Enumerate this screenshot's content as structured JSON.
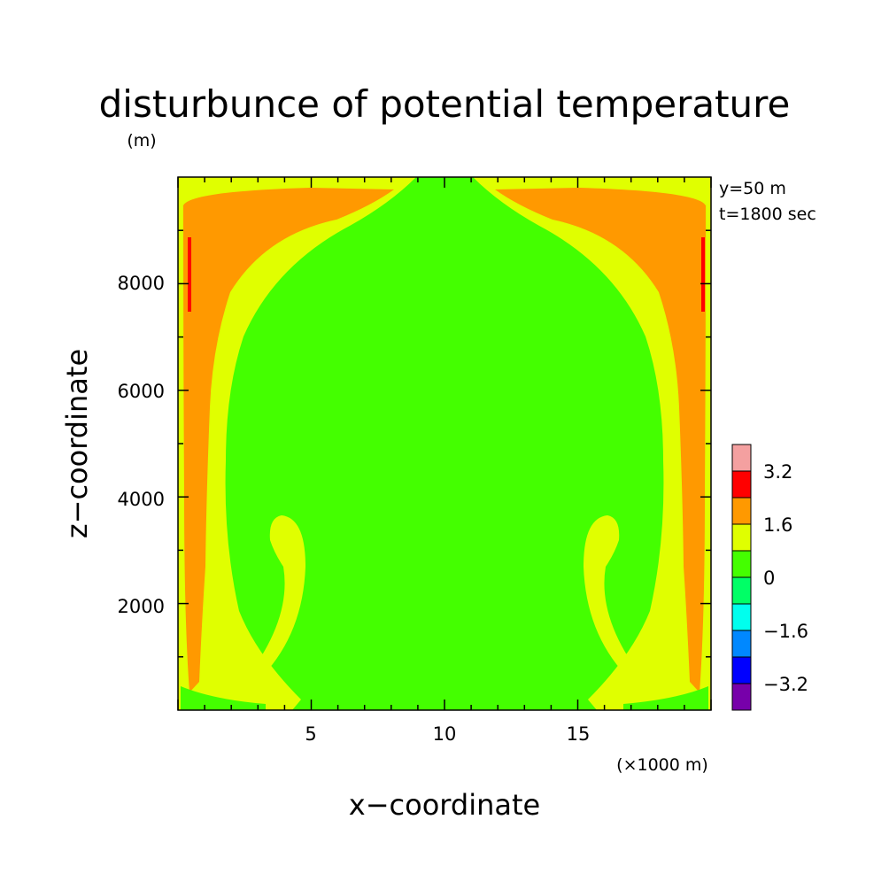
{
  "chart_data": {
    "type": "heatmap",
    "title": "disturbunce of potential temperature",
    "z_unit_label": "(m)",
    "xlabel": "x−coordinate",
    "ylabel": "z−coordinate",
    "x_unit_label": "(×1000 m)",
    "info": [
      "y=50 m",
      "t=1800 sec"
    ],
    "xlim": [
      0,
      20
    ],
    "ylim": [
      0,
      10000
    ],
    "x_ticks": [
      5,
      10,
      15
    ],
    "y_ticks": [
      2000,
      4000,
      6000,
      8000
    ],
    "colorbar": {
      "levels": [
        {
          "color": "#f4a0a0"
        },
        {
          "color": "#ff0000"
        },
        {
          "color": "#ff9900"
        },
        {
          "color": "#e0ff00"
        },
        {
          "color": "#44ff00"
        },
        {
          "color": "#00ff66"
        },
        {
          "color": "#00ffee"
        },
        {
          "color": "#0088ff"
        },
        {
          "color": "#0000ff"
        },
        {
          "color": "#7700aa"
        }
      ],
      "labels": [
        "3.2",
        "1.6",
        "0",
        "−1.6",
        "−3.2"
      ]
    }
  }
}
